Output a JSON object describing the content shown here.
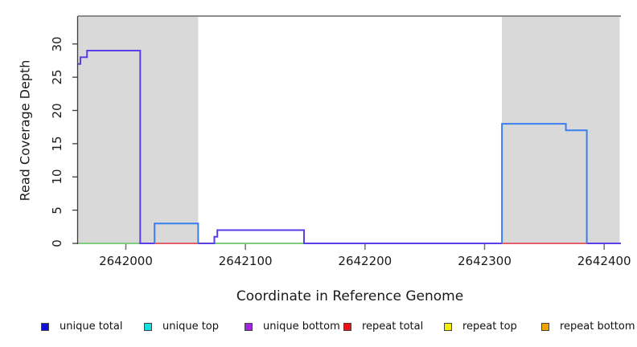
{
  "chart_data": {
    "type": "line",
    "subtype": "step-coverage-plot",
    "title": "",
    "xlabel": "Coordinate in Reference Genome",
    "ylabel": "Read Coverage Depth",
    "xlim": [
      2641960,
      2642414
    ],
    "ylim": [
      0,
      34.2
    ],
    "x_ticks": [
      2642000,
      2642100,
      2642200,
      2642300,
      2642400
    ],
    "y_ticks": [
      0,
      5,
      10,
      15,
      20,
      25,
      30
    ],
    "grid": false,
    "shaded_regions": [
      {
        "name": "repeat-region-left",
        "x1": 2641960,
        "x2": 2642060.5
      },
      {
        "name": "repeat-region-right",
        "x1": 2642314.5,
        "x2": 2642413
      }
    ],
    "region_fill": "#d9d9d9",
    "top_border_color": "#8c8c8c",
    "axis_color": "#3c3c3c",
    "x_tick_color": "#6e6e6e",
    "series": [
      {
        "name": "zero-baseline-green",
        "color": "#7fce7f",
        "points": [
          [
            2641960,
            0
          ],
          [
            2642414,
            0
          ]
        ]
      },
      {
        "name": "unique-bottom",
        "color": "#5a3ee8",
        "points": [
          [
            2641960,
            27
          ],
          [
            2641962,
            27
          ],
          [
            2641962,
            28
          ],
          [
            2641967.5,
            28
          ],
          [
            2641967.5,
            29
          ],
          [
            2642012,
            29
          ],
          [
            2642012,
            0
          ],
          [
            2642074,
            0
          ],
          [
            2642074,
            1
          ],
          [
            2642076.5,
            1
          ],
          [
            2642076.5,
            2
          ],
          [
            2642149,
            2
          ],
          [
            2642149,
            0
          ],
          [
            2642414,
            0
          ]
        ]
      },
      {
        "name": "repeat-total-left",
        "color": "#e05f6b",
        "points": [
          [
            2642024,
            0
          ],
          [
            2642060.5,
            0
          ]
        ]
      },
      {
        "name": "repeat-total-right",
        "color": "#e05f6b",
        "points": [
          [
            2642314.5,
            0
          ],
          [
            2642385.5,
            0
          ]
        ]
      },
      {
        "name": "unique-total-left",
        "color": "#3a7ef0",
        "points": [
          [
            2642024,
            0
          ],
          [
            2642024,
            3
          ],
          [
            2642060.5,
            3
          ],
          [
            2642060.5,
            0
          ]
        ]
      },
      {
        "name": "unique-total-right",
        "color": "#3a7ef0",
        "points": [
          [
            2642314.5,
            0
          ],
          [
            2642314.5,
            18
          ],
          [
            2642368,
            18
          ],
          [
            2642368,
            17
          ],
          [
            2642385.5,
            17
          ],
          [
            2642385.5,
            0
          ]
        ]
      }
    ],
    "legend": [
      {
        "label": "unique total",
        "color": "#0f0fd8"
      },
      {
        "label": "unique top",
        "color": "#10e0e0"
      },
      {
        "label": "unique bottom",
        "color": "#a226dd"
      },
      {
        "label": "repeat total",
        "color": "#ee1111"
      },
      {
        "label": "repeat top",
        "color": "#f0f000"
      },
      {
        "label": "repeat bottom",
        "color": "#f0a400"
      }
    ],
    "legend_position": "bottom"
  }
}
